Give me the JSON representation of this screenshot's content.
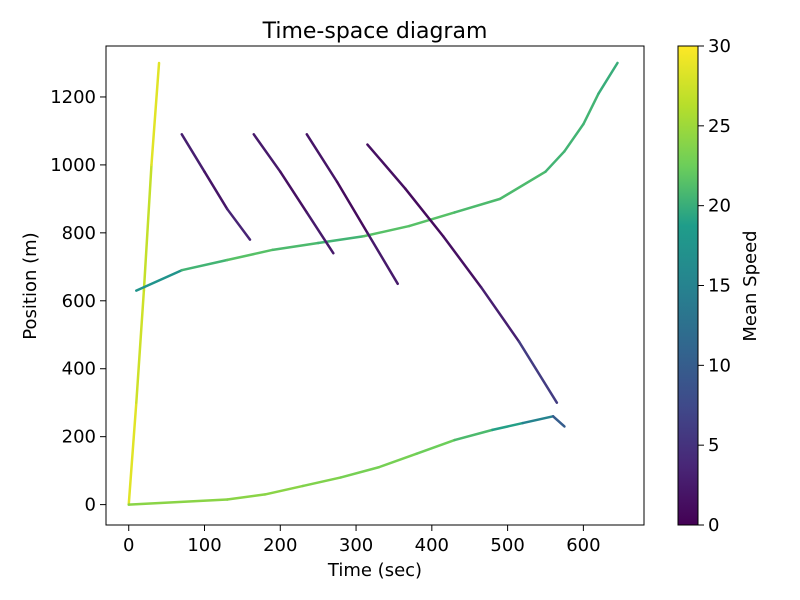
{
  "chart_data": {
    "type": "line",
    "title": "Time-space diagram",
    "xlabel": "Time (sec)",
    "ylabel": "Position (m)",
    "xlim": [
      -30,
      680
    ],
    "ylim": [
      -60,
      1350
    ],
    "x_ticks": [
      0,
      100,
      200,
      300,
      400,
      500,
      600
    ],
    "y_ticks": [
      0,
      200,
      400,
      600,
      800,
      1000,
      1200
    ],
    "grid": false,
    "colorbar": {
      "label": "Mean Speed",
      "range": [
        0,
        30
      ],
      "ticks": [
        0,
        5,
        10,
        15,
        20,
        25,
        30
      ],
      "colormap": "viridis",
      "colors": [
        "#440154",
        "#482777",
        "#3f4a8a",
        "#31678e",
        "#26838f",
        "#1f9d8a",
        "#6cce5a",
        "#b6de2b",
        "#fee825"
      ]
    },
    "series": [
      {
        "x": [
          0,
          10,
          20,
          30,
          40
        ],
        "y": [
          0,
          300,
          630,
          1000,
          1300
        ],
        "speed": [
          28,
          29,
          26,
          28,
          29
        ]
      },
      {
        "x": [
          10,
          70,
          130,
          190,
          250,
          310,
          370,
          430,
          490,
          550,
          575,
          600,
          620,
          645
        ],
        "y": [
          630,
          690,
          720,
          750,
          770,
          790,
          820,
          860,
          900,
          980,
          1040,
          1120,
          1210,
          1300
        ],
        "speed": [
          15,
          20,
          21,
          22,
          20,
          21,
          22,
          21,
          21,
          21,
          20,
          21,
          20,
          20
        ]
      },
      {
        "x": [
          0,
          130,
          180,
          230,
          280,
          330,
          380,
          430,
          480,
          520,
          560,
          575
        ],
        "y": [
          0,
          15,
          30,
          55,
          80,
          110,
          150,
          190,
          220,
          240,
          260,
          230
        ],
        "speed": [
          24,
          24,
          24,
          24,
          23,
          23,
          23,
          22,
          20,
          18,
          12,
          8
        ]
      },
      {
        "x": [
          70,
          100,
          130,
          160
        ],
        "y": [
          1090,
          980,
          870,
          780
        ],
        "speed": [
          4,
          2,
          2,
          5
        ]
      },
      {
        "x": [
          165,
          200,
          235,
          270
        ],
        "y": [
          1090,
          980,
          860,
          740
        ],
        "speed": [
          3,
          2,
          1,
          4
        ]
      },
      {
        "x": [
          235,
          275,
          315,
          355
        ],
        "y": [
          1090,
          950,
          800,
          650
        ],
        "speed": [
          3,
          1,
          1,
          4
        ]
      },
      {
        "x": [
          315,
          365,
          415,
          465,
          515,
          565
        ],
        "y": [
          1060,
          930,
          790,
          640,
          480,
          300
        ],
        "speed": [
          2,
          1,
          1,
          2,
          4,
          8
        ]
      }
    ]
  }
}
